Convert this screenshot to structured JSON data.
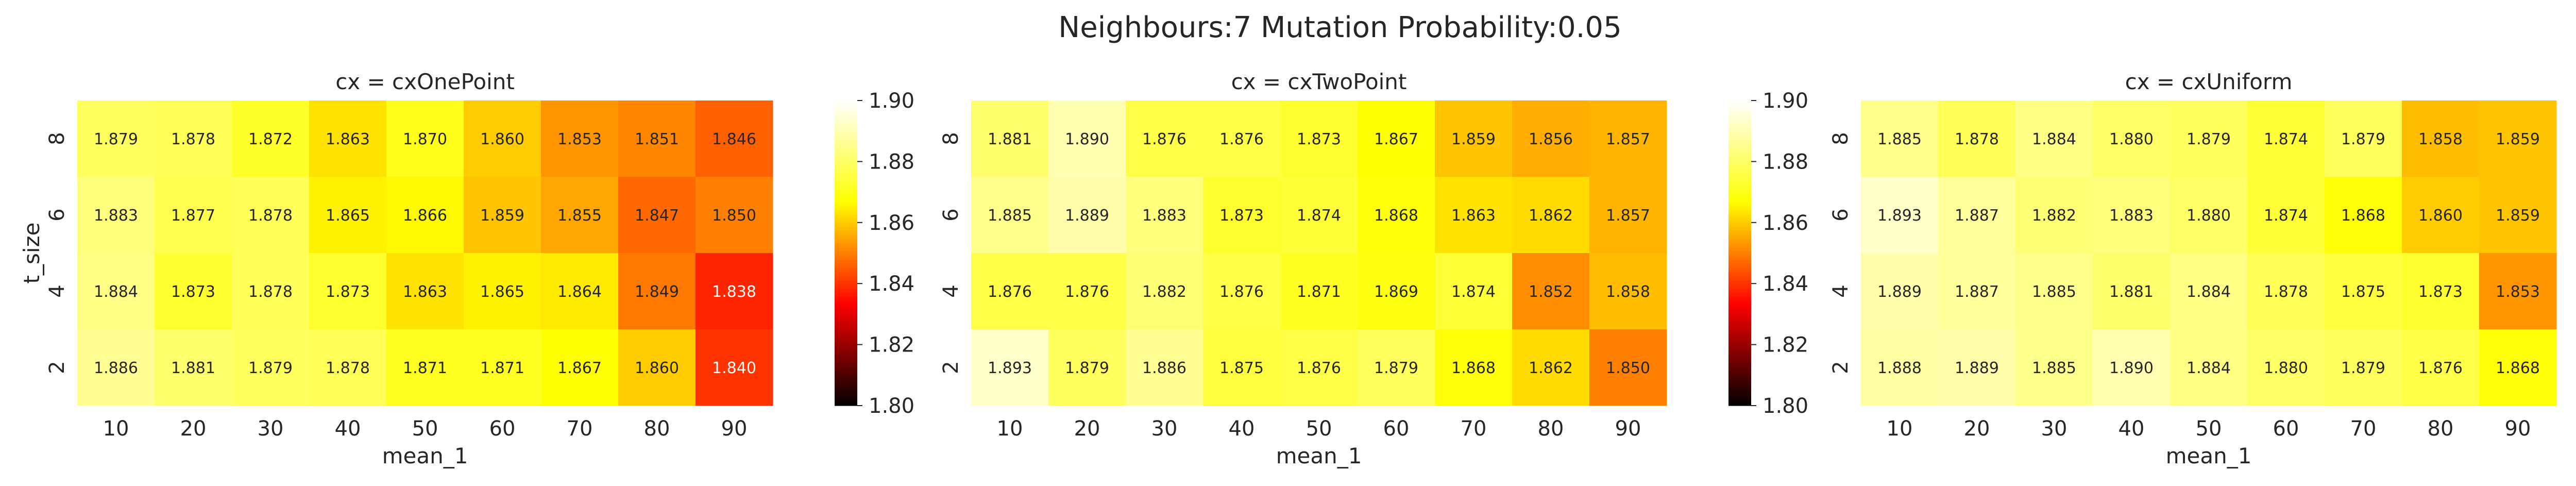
{
  "suptitle": "Neighbours:7 Mutation Probability:0.05",
  "colormap": [
    "#000000",
    "#ff0000",
    "#ffff00",
    "#ffffff"
  ],
  "chart_data": [
    {
      "type": "heatmap",
      "title": "cx = cxOnePoint",
      "xlabel": "mean_1",
      "ylabel": "t_size",
      "x": [
        "10",
        "20",
        "30",
        "40",
        "50",
        "60",
        "70",
        "80",
        "90"
      ],
      "y": [
        "8",
        "6",
        "4",
        "2"
      ],
      "values": [
        [
          1.879,
          1.878,
          1.872,
          1.863,
          1.87,
          1.86,
          1.853,
          1.851,
          1.846
        ],
        [
          1.883,
          1.877,
          1.878,
          1.865,
          1.866,
          1.859,
          1.855,
          1.847,
          1.85
        ],
        [
          1.884,
          1.873,
          1.878,
          1.873,
          1.863,
          1.865,
          1.864,
          1.849,
          1.838
        ],
        [
          1.886,
          1.881,
          1.879,
          1.878,
          1.871,
          1.871,
          1.867,
          1.86,
          1.84
        ]
      ],
      "colorbar": {
        "range": [
          1.8,
          1.9
        ],
        "ticks": [
          "1.80",
          "1.82",
          "1.84",
          "1.86",
          "1.88",
          "1.90"
        ]
      }
    },
    {
      "type": "heatmap",
      "title": "cx = cxTwoPoint",
      "xlabel": "mean_1",
      "ylabel": "",
      "x": [
        "10",
        "20",
        "30",
        "40",
        "50",
        "60",
        "70",
        "80",
        "90"
      ],
      "y": [
        "8",
        "6",
        "4",
        "2"
      ],
      "values": [
        [
          1.881,
          1.89,
          1.876,
          1.876,
          1.873,
          1.867,
          1.859,
          1.856,
          1.857
        ],
        [
          1.885,
          1.889,
          1.883,
          1.873,
          1.874,
          1.868,
          1.863,
          1.862,
          1.857
        ],
        [
          1.876,
          1.876,
          1.882,
          1.876,
          1.871,
          1.869,
          1.874,
          1.852,
          1.858
        ],
        [
          1.893,
          1.879,
          1.886,
          1.875,
          1.876,
          1.879,
          1.868,
          1.862,
          1.85
        ]
      ],
      "colorbar": {
        "range": [
          1.8,
          1.9
        ],
        "ticks": [
          "1.80",
          "1.82",
          "1.84",
          "1.86",
          "1.88",
          "1.90"
        ]
      }
    },
    {
      "type": "heatmap",
      "title": "cx = cxUniform",
      "xlabel": "mean_1",
      "ylabel": "",
      "x": [
        "10",
        "20",
        "30",
        "40",
        "50",
        "60",
        "70",
        "80",
        "90"
      ],
      "y": [
        "8",
        "6",
        "4",
        "2"
      ],
      "values": [
        [
          1.885,
          1.878,
          1.884,
          1.88,
          1.879,
          1.874,
          1.879,
          1.858,
          1.859
        ],
        [
          1.893,
          1.887,
          1.882,
          1.883,
          1.88,
          1.874,
          1.868,
          1.86,
          1.859
        ],
        [
          1.889,
          1.887,
          1.885,
          1.881,
          1.884,
          1.878,
          1.875,
          1.873,
          1.853
        ],
        [
          1.888,
          1.889,
          1.885,
          1.89,
          1.884,
          1.88,
          1.879,
          1.876,
          1.868
        ]
      ],
      "colorbar": {
        "range": [
          1.8,
          1.9
        ],
        "ticks": [
          "1.80",
          "1.82",
          "1.84",
          "1.86",
          "1.88",
          "1.90"
        ]
      }
    }
  ]
}
